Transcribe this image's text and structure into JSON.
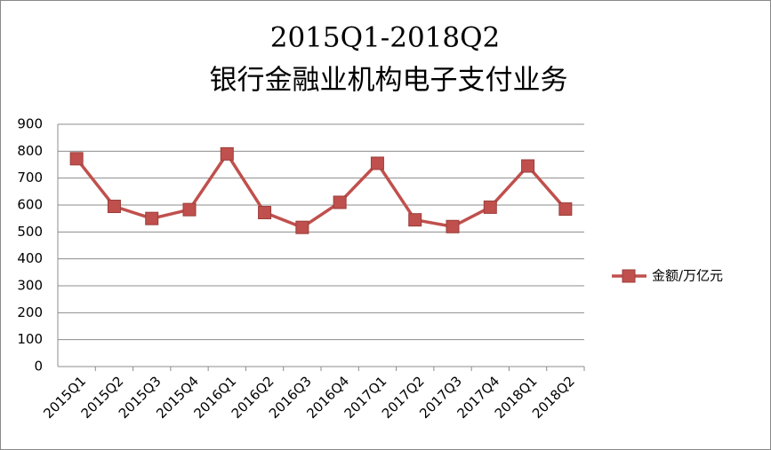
{
  "chart_data": {
    "type": "line",
    "title": "2015Q1-2018Q2",
    "subtitle": "银行金融业机构电子支付业务",
    "categories": [
      "2015Q1",
      "2015Q2",
      "2015Q3",
      "2015Q4",
      "2016Q1",
      "2016Q2",
      "2016Q3",
      "2016Q4",
      "2017Q1",
      "2017Q2",
      "2017Q3",
      "2017Q4",
      "2018Q1",
      "2018Q2"
    ],
    "series": [
      {
        "name": "金额/万亿元",
        "color": "#c0504d",
        "values": [
          772,
          595,
          550,
          583,
          790,
          572,
          517,
          610,
          755,
          545,
          520,
          592,
          745,
          585
        ]
      }
    ],
    "ylim": [
      0,
      900
    ],
    "yticks": [
      0,
      100,
      200,
      300,
      400,
      500,
      600,
      700,
      800,
      900
    ],
    "grid": true,
    "legend": "right"
  }
}
